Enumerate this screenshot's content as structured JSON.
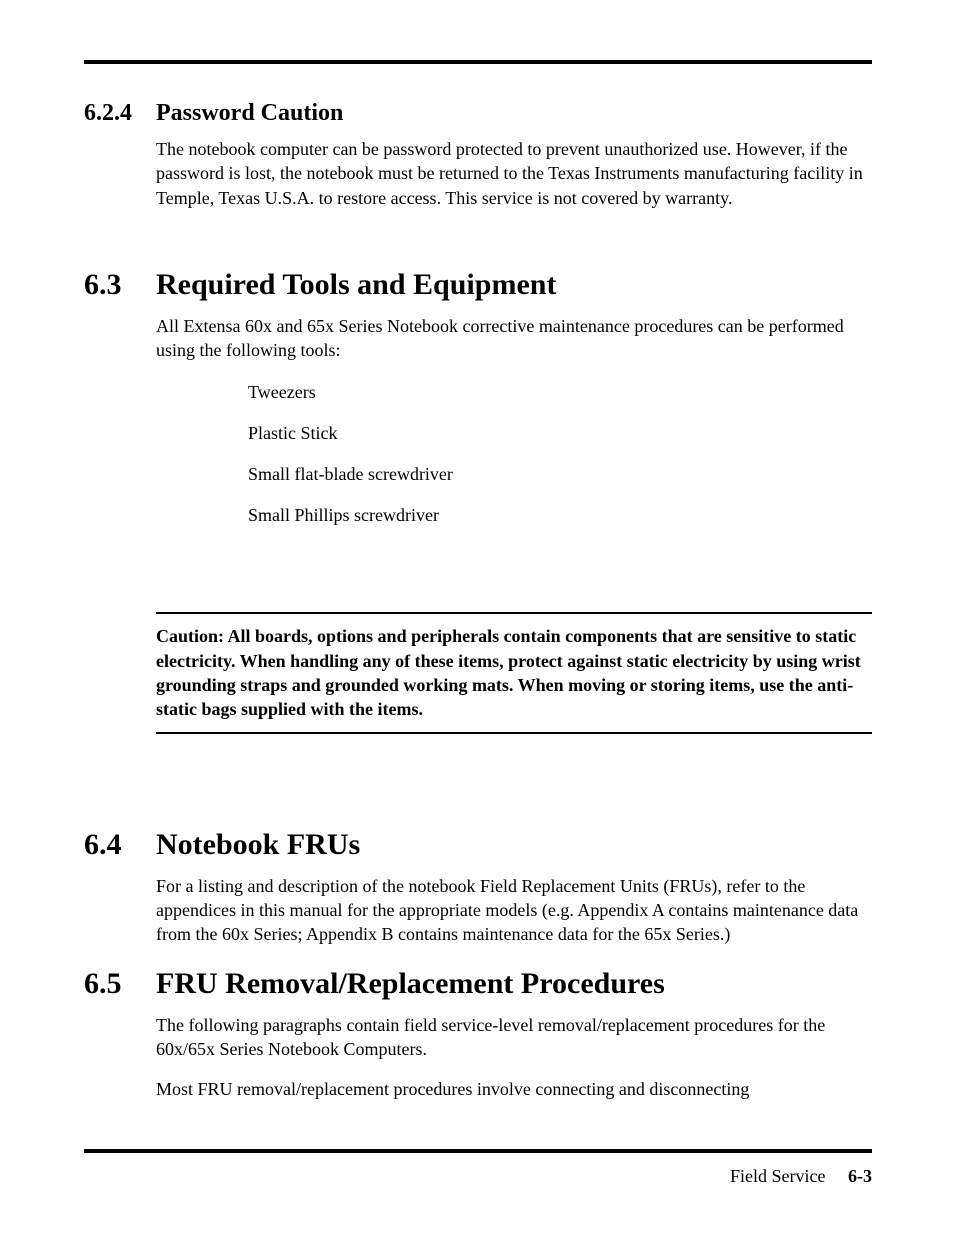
{
  "colors": {
    "text": "#000000",
    "background": "#ffffff",
    "rule": "#000000"
  },
  "typography": {
    "body_family": "Bookman Old Style, URW Bookman, Georgia, serif",
    "body_size_pt": 13,
    "h_sub_size_pt": 18,
    "h_main_size_pt": 22
  },
  "sections": {
    "s624": {
      "number": "6.2.4",
      "title": "Password Caution",
      "body": "The notebook computer can be password protected to prevent unauthorized use. However, if the password is lost, the notebook must be returned to the Texas Instruments manufacturing facility in Temple, Texas U.S.A. to restore access. This service is not covered by warranty."
    },
    "s63": {
      "number": "6.3",
      "title": "Required Tools and Equipment",
      "intro": "All Extensa 60x and 65x Series Notebook corrective maintenance procedures can be performed using the following tools:",
      "tools": [
        "Tweezers",
        "Plastic Stick",
        "Small flat-blade screwdriver",
        "Small Phillips screwdriver"
      ],
      "caution": "Caution: All boards, options and peripherals contain components that are sensitive to static electricity. When handling any of these items, protect against static electricity by using wrist  grounding straps and grounded working mats. When moving or storing items, use the anti-static bags supplied with the items."
    },
    "s64": {
      "number": "6.4",
      "title": "Notebook FRUs",
      "body": "For a listing and description of the notebook Field Replacement Units (FRUs), refer to the appendices in this manual for the appropriate models (e.g. Appendix A contains maintenance data from the 60x Series; Appendix B contains maintenance data for the 65x Series.)"
    },
    "s65": {
      "number": "6.5",
      "title": "FRU Removal/Replacement Procedures",
      "body": "The following paragraphs contain field service-level removal/replacement procedures for the 60x/65x Series Notebook Computers.",
      "body2": " Most FRU removal/replacement procedures involve connecting and disconnecting"
    }
  },
  "footer": {
    "label": "Field Service",
    "page": "6-3"
  }
}
